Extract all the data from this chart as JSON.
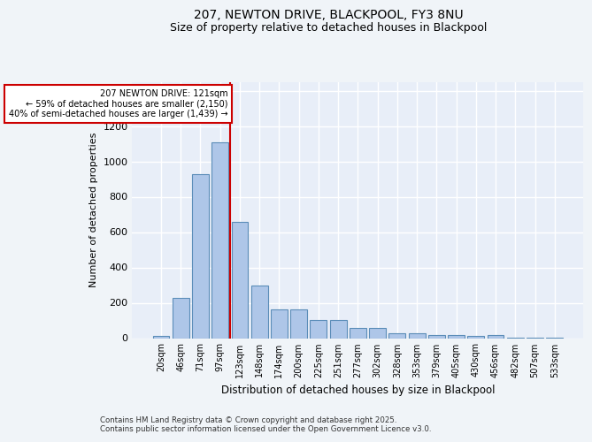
{
  "title1": "207, NEWTON DRIVE, BLACKPOOL, FY3 8NU",
  "title2": "Size of property relative to detached houses in Blackpool",
  "xlabel": "Distribution of detached houses by size in Blackpool",
  "ylabel": "Number of detached properties",
  "footer1": "Contains HM Land Registry data © Crown copyright and database right 2025.",
  "footer2": "Contains public sector information licensed under the Open Government Licence v3.0.",
  "categories": [
    "20sqm",
    "46sqm",
    "71sqm",
    "97sqm",
    "123sqm",
    "148sqm",
    "174sqm",
    "200sqm",
    "225sqm",
    "251sqm",
    "277sqm",
    "302sqm",
    "328sqm",
    "353sqm",
    "379sqm",
    "405sqm",
    "430sqm",
    "456sqm",
    "482sqm",
    "507sqm",
    "533sqm"
  ],
  "values": [
    15,
    230,
    930,
    1110,
    660,
    300,
    165,
    165,
    105,
    105,
    60,
    60,
    30,
    30,
    20,
    20,
    15,
    20,
    5,
    5,
    5
  ],
  "bar_color": "#aec6e8",
  "bar_edge_color": "#5b8db8",
  "bg_color": "#e8eef8",
  "grid_color": "#ffffff",
  "vline_color": "#cc0000",
  "annotation_text": "207 NEWTON DRIVE: 121sqm\n← 59% of detached houses are smaller (2,150)\n40% of semi-detached houses are larger (1,439) →",
  "annotation_box_color": "#cc0000",
  "ylim": [
    0,
    1450
  ],
  "yticks": [
    0,
    200,
    400,
    600,
    800,
    1000,
    1200,
    1400
  ],
  "fig_facecolor": "#f0f4f8",
  "title1_fontsize": 10,
  "title2_fontsize": 9
}
